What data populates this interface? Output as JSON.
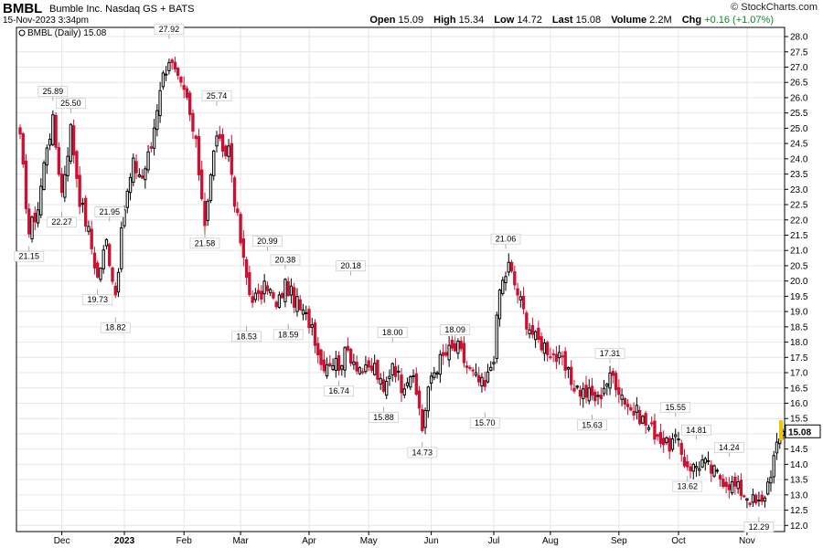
{
  "header": {
    "symbol": "BMBL",
    "company": "Bumble Inc.",
    "exchange": "Nasdaq GS + BATS",
    "datetime": "15-Nov-2023 3:34pm",
    "brand": "© StockCharts.com",
    "open_label": "Open",
    "open_value": "15.09",
    "high_label": "High",
    "high_value": "15.34",
    "low_label": "Low",
    "low_value": "14.72",
    "last_label": "Last",
    "last_value": "15.08",
    "volume_label": "Volume",
    "volume_value": "2.2M",
    "chg_label": "Chg",
    "chg_value": "+0.16 (+1.07%)"
  },
  "legend": {
    "label": "BMBL (Daily) 15.08"
  },
  "colors": {
    "up": "#000000",
    "down": "#cc1133",
    "price_marker": "#f5c400",
    "grid": "#e6e6e6"
  },
  "chart_data": {
    "type": "candlestick",
    "ylim": [
      11.8,
      28.3
    ],
    "yticks": [
      12.0,
      12.5,
      13.0,
      13.5,
      14.0,
      14.5,
      15.0,
      15.5,
      16.0,
      16.5,
      17.0,
      17.5,
      18.0,
      18.5,
      19.0,
      19.5,
      20.0,
      20.5,
      21.0,
      21.5,
      22.0,
      22.5,
      23.0,
      23.5,
      24.0,
      24.5,
      25.0,
      25.5,
      26.0,
      26.5,
      27.0,
      27.5,
      28.0
    ],
    "x_labels": [
      {
        "label": "Dec",
        "i": 14
      },
      {
        "label": "2023",
        "i": 35
      },
      {
        "label": "Feb",
        "i": 55
      },
      {
        "label": "Mar",
        "i": 74
      },
      {
        "label": "Apr",
        "i": 97
      },
      {
        "label": "May",
        "i": 117
      },
      {
        "label": "Jun",
        "i": 138
      },
      {
        "label": "Jul",
        "i": 159
      },
      {
        "label": "Aug",
        "i": 178
      },
      {
        "label": "Sep",
        "i": 201
      },
      {
        "label": "Oct",
        "i": 221
      },
      {
        "label": "Nov",
        "i": 244
      }
    ],
    "last_price": "15.08",
    "annotations": [
      {
        "label": "25.89",
        "value": 25.89,
        "i": 11,
        "pos": "above"
      },
      {
        "label": "25.50",
        "value": 25.5,
        "i": 17,
        "pos": "above"
      },
      {
        "label": "22.27",
        "value": 22.27,
        "i": 14,
        "pos": "below"
      },
      {
        "label": "21.15",
        "value": 21.15,
        "i": 3,
        "pos": "below"
      },
      {
        "label": "21.95",
        "value": 21.95,
        "i": 30,
        "pos": "above"
      },
      {
        "label": "19.73",
        "value": 19.73,
        "i": 26,
        "pos": "below"
      },
      {
        "label": "18.82",
        "value": 18.82,
        "i": 32,
        "pos": "below"
      },
      {
        "label": "27.92",
        "value": 27.92,
        "i": 50,
        "pos": "above"
      },
      {
        "label": "25.74",
        "value": 25.74,
        "i": 66,
        "pos": "above"
      },
      {
        "label": "21.58",
        "value": 21.58,
        "i": 62,
        "pos": "below"
      },
      {
        "label": "20.99",
        "value": 20.99,
        "i": 83,
        "pos": "above"
      },
      {
        "label": "20.38",
        "value": 20.38,
        "i": 89,
        "pos": "above"
      },
      {
        "label": "18.53",
        "value": 18.53,
        "i": 76,
        "pos": "below"
      },
      {
        "label": "18.59",
        "value": 18.59,
        "i": 90,
        "pos": "below"
      },
      {
        "label": "20.18",
        "value": 20.18,
        "i": 111,
        "pos": "above"
      },
      {
        "label": "16.74",
        "value": 16.74,
        "i": 107,
        "pos": "below"
      },
      {
        "label": "18.00",
        "value": 18.0,
        "i": 125,
        "pos": "above"
      },
      {
        "label": "15.88",
        "value": 15.88,
        "i": 122,
        "pos": "below"
      },
      {
        "label": "14.73",
        "value": 14.73,
        "i": 135,
        "pos": "below"
      },
      {
        "label": "18.09",
        "value": 18.09,
        "i": 146,
        "pos": "above"
      },
      {
        "label": "15.70",
        "value": 15.7,
        "i": 156,
        "pos": "below"
      },
      {
        "label": "21.06",
        "value": 21.06,
        "i": 163,
        "pos": "above"
      },
      {
        "label": "17.31",
        "value": 17.31,
        "i": 198,
        "pos": "above"
      },
      {
        "label": "15.63",
        "value": 15.63,
        "i": 192,
        "pos": "below"
      },
      {
        "label": "15.55",
        "value": 15.55,
        "i": 220,
        "pos": "above"
      },
      {
        "label": "14.81",
        "value": 14.81,
        "i": 227,
        "pos": "above"
      },
      {
        "label": "13.62",
        "value": 13.62,
        "i": 224,
        "pos": "below"
      },
      {
        "label": "14.24",
        "value": 14.24,
        "i": 238,
        "pos": "above"
      },
      {
        "label": "12.29",
        "value": 12.29,
        "i": 248,
        "pos": "below"
      }
    ],
    "anchors": [
      [
        0,
        24.6
      ],
      [
        3,
        21.6
      ],
      [
        6,
        22.4
      ],
      [
        9,
        24.5
      ],
      [
        11,
        25.2
      ],
      [
        14,
        22.9
      ],
      [
        17,
        25.0
      ],
      [
        20,
        22.7
      ],
      [
        23,
        21.6
      ],
      [
        26,
        20.1
      ],
      [
        29,
        21.3
      ],
      [
        32,
        19.6
      ],
      [
        35,
        22.4
      ],
      [
        38,
        23.8
      ],
      [
        41,
        23.4
      ],
      [
        44,
        24.4
      ],
      [
        47,
        26.4
      ],
      [
        50,
        27.3
      ],
      [
        53,
        26.5
      ],
      [
        56,
        25.9
      ],
      [
        59,
        24.4
      ],
      [
        62,
        22.0
      ],
      [
        64,
        23.4
      ],
      [
        66,
        24.9
      ],
      [
        68,
        24.0
      ],
      [
        70,
        24.4
      ],
      [
        72,
        22.7
      ],
      [
        75,
        20.6
      ],
      [
        77,
        19.6
      ],
      [
        80,
        19.4
      ],
      [
        83,
        19.9
      ],
      [
        86,
        19.1
      ],
      [
        89,
        19.9
      ],
      [
        92,
        19.4
      ],
      [
        95,
        18.9
      ],
      [
        98,
        18.6
      ],
      [
        101,
        17.3
      ],
      [
        104,
        17.4
      ],
      [
        107,
        17.3
      ],
      [
        110,
        17.7
      ],
      [
        113,
        17.3
      ],
      [
        116,
        17.0
      ],
      [
        119,
        17.2
      ],
      [
        122,
        16.3
      ],
      [
        125,
        17.4
      ],
      [
        128,
        16.6
      ],
      [
        131,
        17.0
      ],
      [
        134,
        15.9
      ],
      [
        135,
        15.2
      ],
      [
        138,
        16.9
      ],
      [
        141,
        17.4
      ],
      [
        144,
        17.7
      ],
      [
        147,
        17.8
      ],
      [
        150,
        17.2
      ],
      [
        153,
        16.8
      ],
      [
        156,
        16.5
      ],
      [
        159,
        17.6
      ],
      [
        161,
        19.7
      ],
      [
        164,
        20.5
      ],
      [
        167,
        19.6
      ],
      [
        170,
        18.7
      ],
      [
        173,
        18.1
      ],
      [
        176,
        17.9
      ],
      [
        179,
        17.6
      ],
      [
        182,
        17.3
      ],
      [
        185,
        16.7
      ],
      [
        188,
        16.4
      ],
      [
        191,
        16.3
      ],
      [
        194,
        16.1
      ],
      [
        196,
        16.6
      ],
      [
        199,
        16.9
      ],
      [
        202,
        16.3
      ],
      [
        205,
        15.8
      ],
      [
        208,
        15.6
      ],
      [
        211,
        15.2
      ],
      [
        214,
        15.0
      ],
      [
        217,
        14.6
      ],
      [
        220,
        14.8
      ],
      [
        223,
        14.1
      ],
      [
        226,
        13.9
      ],
      [
        229,
        14.1
      ],
      [
        232,
        13.8
      ],
      [
        235,
        13.6
      ],
      [
        238,
        13.4
      ],
      [
        241,
        13.2
      ],
      [
        244,
        13.0
      ],
      [
        247,
        12.7
      ],
      [
        249,
        12.7
      ],
      [
        251,
        13.4
      ],
      [
        253,
        14.2
      ],
      [
        255,
        14.8
      ],
      [
        256,
        15.08
      ]
    ]
  }
}
